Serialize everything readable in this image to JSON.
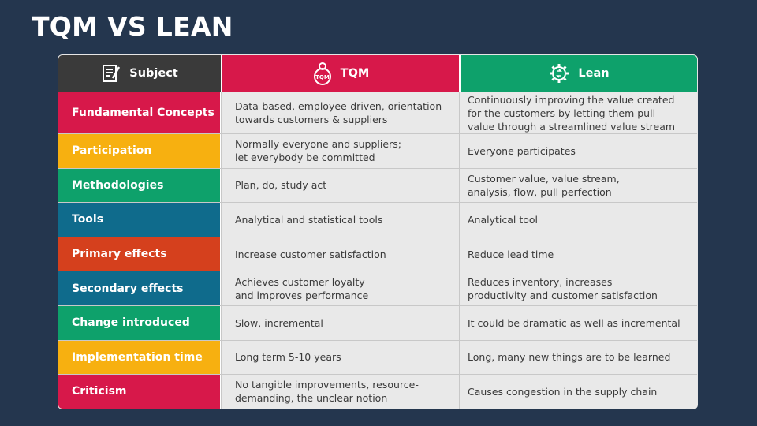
{
  "title": "TQM VS LEAN",
  "header": {
    "subject": "Subject",
    "tqm": "TQM",
    "lean": "Lean",
    "tqm_icon_text": "TQM"
  },
  "colors": {
    "background": "#24364e",
    "subject_header": "#3a3a3a",
    "tqm_header": "#d7184a",
    "lean_header": "#0ea16b",
    "crimson": "#d7184a",
    "amber": "#f7b010",
    "green": "#0ea16b",
    "teal": "#0f6b8c",
    "orange_red": "#d5401d"
  },
  "rows": [
    {
      "subject": "Fundamental Concepts",
      "color": "#d7184a",
      "tqm": "Data-based, employee-driven, orientation\ntowards customers & suppliers",
      "lean": "Continuously improving the value created\nfor the customers by letting them pull\nvalue through a streamlined value stream"
    },
    {
      "subject": "Participation",
      "color": "#f7b010",
      "tqm": "Normally everyone and suppliers;\nlet everybody be committed",
      "lean": "Everyone participates"
    },
    {
      "subject": "Methodologies",
      "color": "#0ea16b",
      "tqm": "Plan, do, study act",
      "lean": "Customer value, value stream,\nanalysis, flow, pull perfection"
    },
    {
      "subject": "Tools",
      "color": "#0f6b8c",
      "tqm": "Analytical and statistical tools",
      "lean": "Analytical tool"
    },
    {
      "subject": "Primary effects",
      "color": "#d5401d",
      "tqm": "Increase customer satisfaction",
      "lean": "Reduce lead time"
    },
    {
      "subject": "Secondary effects",
      "color": "#0f6b8c",
      "tqm": "Achieves customer loyalty\nand improves performance",
      "lean": "Reduces inventory, increases\nproductivity and customer satisfaction"
    },
    {
      "subject": "Change introduced",
      "color": "#0ea16b",
      "tqm": "Slow, incremental",
      "lean": "It could be dramatic as well as incremental"
    },
    {
      "subject": "Implementation time",
      "color": "#f7b010",
      "tqm": "Long term 5-10 years",
      "lean": "Long, many new things are to be learned"
    },
    {
      "subject": "Criticism",
      "color": "#d7184a",
      "tqm": "No tangible improvements, resource-\ndemanding, the unclear notion",
      "lean": "Causes congestion in the supply chain"
    }
  ]
}
